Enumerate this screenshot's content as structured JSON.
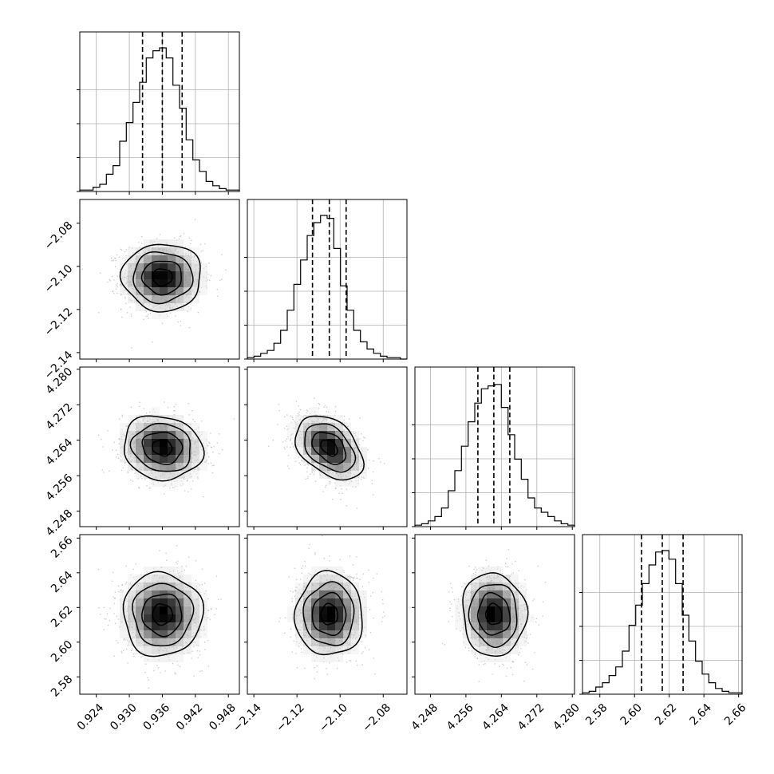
{
  "chart_data": {
    "type": "corner",
    "grid": true,
    "params": [
      {
        "mean": 0.936,
        "std": 0.0036,
        "range": [
          0.921,
          0.95
        ],
        "quantiles": [
          0.9324,
          0.936,
          0.9396
        ],
        "ticks": [
          "0.924",
          "0.930",
          "0.936",
          "0.942",
          "0.948"
        ],
        "tick_values": [
          0.924,
          0.93,
          0.936,
          0.942,
          0.948
        ]
      },
      {
        "mean": -2.105,
        "std": 0.0078,
        "range": [
          -2.143,
          -2.069
        ],
        "quantiles": [
          -2.1128,
          -2.105,
          -2.0972
        ],
        "ticks": [
          "−2.14",
          "−2.12",
          "−2.10",
          "−2.08"
        ],
        "tick_values": [
          -2.14,
          -2.12,
          -2.1,
          -2.08
        ]
      },
      {
        "mean": 4.2623,
        "std": 0.0036,
        "range": [
          4.2445,
          4.2805
        ],
        "quantiles": [
          4.2587,
          4.2623,
          4.2659
        ],
        "ticks": [
          "4.248",
          "4.256",
          "4.264",
          "4.272",
          "4.280"
        ],
        "tick_values": [
          4.248,
          4.256,
          4.264,
          4.272,
          4.28
        ]
      },
      {
        "mean": 2.616,
        "std": 0.012,
        "range": [
          2.57,
          2.662
        ],
        "quantiles": [
          2.604,
          2.616,
          2.628
        ],
        "ticks": [
          "2.58",
          "2.60",
          "2.62",
          "2.64",
          "2.66"
        ],
        "tick_values": [
          2.58,
          2.6,
          2.62,
          2.64,
          2.66
        ]
      }
    ],
    "histograms": [
      {
        "param": 0,
        "counts": [
          0.01,
          0.01,
          0.03,
          0.05,
          0.12,
          0.18,
          0.35,
          0.48,
          0.62,
          0.76,
          0.93,
          0.98,
          1.0,
          0.93,
          0.74,
          0.58,
          0.36,
          0.22,
          0.14,
          0.07,
          0.04,
          0.02,
          0.01,
          0.01
        ]
      },
      {
        "param": 1,
        "counts": [
          0.01,
          0.02,
          0.04,
          0.06,
          0.11,
          0.2,
          0.34,
          0.52,
          0.69,
          0.86,
          0.95,
          1.0,
          0.98,
          0.77,
          0.51,
          0.34,
          0.2,
          0.12,
          0.07,
          0.04,
          0.02,
          0.01,
          0.01,
          0.0
        ]
      },
      {
        "param": 2,
        "counts": [
          0.01,
          0.02,
          0.04,
          0.07,
          0.13,
          0.25,
          0.39,
          0.56,
          0.73,
          0.86,
          0.96,
          0.98,
          0.99,
          0.83,
          0.64,
          0.47,
          0.33,
          0.2,
          0.13,
          0.1,
          0.07,
          0.04,
          0.02,
          0.01
        ]
      },
      {
        "param": 3,
        "counts": [
          0.01,
          0.02,
          0.05,
          0.08,
          0.13,
          0.19,
          0.3,
          0.48,
          0.62,
          0.77,
          0.9,
          0.99,
          1.0,
          0.94,
          0.77,
          0.55,
          0.37,
          0.23,
          0.14,
          0.08,
          0.04,
          0.02,
          0.01,
          0.01
        ]
      }
    ],
    "density_pairs": [
      {
        "x": 0,
        "y": 1,
        "rho": 0.0
      },
      {
        "x": 0,
        "y": 2,
        "rho": -0.1
      },
      {
        "x": 1,
        "y": 2,
        "rho": -0.4
      },
      {
        "x": 0,
        "y": 3,
        "rho": 0.0
      },
      {
        "x": 1,
        "y": 3,
        "rho": 0.0
      },
      {
        "x": 2,
        "y": 3,
        "rho": -0.05
      }
    ],
    "contour_levels_sigma": [
      0.5,
      1.0,
      1.5,
      2.0
    ]
  }
}
